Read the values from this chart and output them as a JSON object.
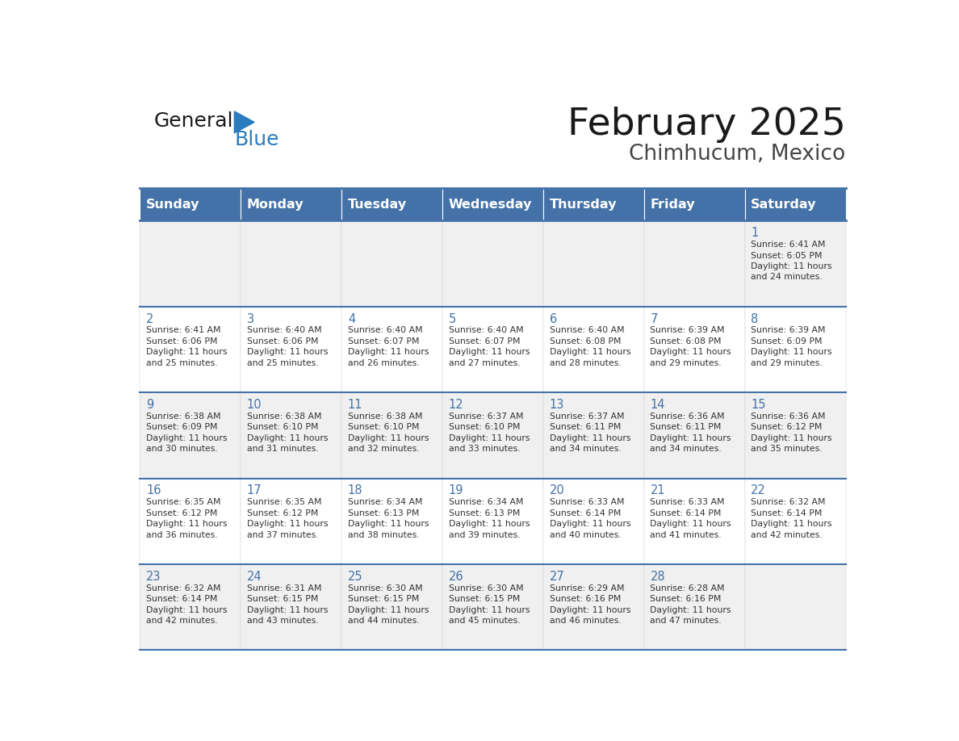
{
  "title": "February 2025",
  "subtitle": "Chimhucum, Mexico",
  "days_of_week": [
    "Sunday",
    "Monday",
    "Tuesday",
    "Wednesday",
    "Thursday",
    "Friday",
    "Saturday"
  ],
  "header_bg": "#4472a8",
  "header_text": "#ffffff",
  "cell_bg_light": "#f0f0f0",
  "cell_bg_white": "#ffffff",
  "border_color": "#4472a8",
  "day_num_color": "#4472a8",
  "text_color": "#333333",
  "logo_general_color": "#1a1a1a",
  "logo_blue_color": "#2b7bbf",
  "calendar_data": [
    [
      null,
      null,
      null,
      null,
      null,
      null,
      1
    ],
    [
      2,
      3,
      4,
      5,
      6,
      7,
      8
    ],
    [
      9,
      10,
      11,
      12,
      13,
      14,
      15
    ],
    [
      16,
      17,
      18,
      19,
      20,
      21,
      22
    ],
    [
      23,
      24,
      25,
      26,
      27,
      28,
      null
    ]
  ],
  "sunrise_data": {
    "1": "6:41 AM",
    "2": "6:41 AM",
    "3": "6:40 AM",
    "4": "6:40 AM",
    "5": "6:40 AM",
    "6": "6:40 AM",
    "7": "6:39 AM",
    "8": "6:39 AM",
    "9": "6:38 AM",
    "10": "6:38 AM",
    "11": "6:38 AM",
    "12": "6:37 AM",
    "13": "6:37 AM",
    "14": "6:36 AM",
    "15": "6:36 AM",
    "16": "6:35 AM",
    "17": "6:35 AM",
    "18": "6:34 AM",
    "19": "6:34 AM",
    "20": "6:33 AM",
    "21": "6:33 AM",
    "22": "6:32 AM",
    "23": "6:32 AM",
    "24": "6:31 AM",
    "25": "6:30 AM",
    "26": "6:30 AM",
    "27": "6:29 AM",
    "28": "6:28 AM"
  },
  "sunset_data": {
    "1": "6:05 PM",
    "2": "6:06 PM",
    "3": "6:06 PM",
    "4": "6:07 PM",
    "5": "6:07 PM",
    "6": "6:08 PM",
    "7": "6:08 PM",
    "8": "6:09 PM",
    "9": "6:09 PM",
    "10": "6:10 PM",
    "11": "6:10 PM",
    "12": "6:10 PM",
    "13": "6:11 PM",
    "14": "6:11 PM",
    "15": "6:12 PM",
    "16": "6:12 PM",
    "17": "6:12 PM",
    "18": "6:13 PM",
    "19": "6:13 PM",
    "20": "6:14 PM",
    "21": "6:14 PM",
    "22": "6:14 PM",
    "23": "6:14 PM",
    "24": "6:15 PM",
    "25": "6:15 PM",
    "26": "6:15 PM",
    "27": "6:16 PM",
    "28": "6:16 PM"
  },
  "daylight_data": {
    "1": "11 hours\nand 24 minutes.",
    "2": "11 hours\nand 25 minutes.",
    "3": "11 hours\nand 25 minutes.",
    "4": "11 hours\nand 26 minutes.",
    "5": "11 hours\nand 27 minutes.",
    "6": "11 hours\nand 28 minutes.",
    "7": "11 hours\nand 29 minutes.",
    "8": "11 hours\nand 29 minutes.",
    "9": "11 hours\nand 30 minutes.",
    "10": "11 hours\nand 31 minutes.",
    "11": "11 hours\nand 32 minutes.",
    "12": "11 hours\nand 33 minutes.",
    "13": "11 hours\nand 34 minutes.",
    "14": "11 hours\nand 34 minutes.",
    "15": "11 hours\nand 35 minutes.",
    "16": "11 hours\nand 36 minutes.",
    "17": "11 hours\nand 37 minutes.",
    "18": "11 hours\nand 38 minutes.",
    "19": "11 hours\nand 39 minutes.",
    "20": "11 hours\nand 40 minutes.",
    "21": "11 hours\nand 41 minutes.",
    "22": "11 hours\nand 42 minutes.",
    "23": "11 hours\nand 42 minutes.",
    "24": "11 hours\nand 43 minutes.",
    "25": "11 hours\nand 44 minutes.",
    "26": "11 hours\nand 45 minutes.",
    "27": "11 hours\nand 46 minutes.",
    "28": "11 hours\nand 47 minutes."
  }
}
